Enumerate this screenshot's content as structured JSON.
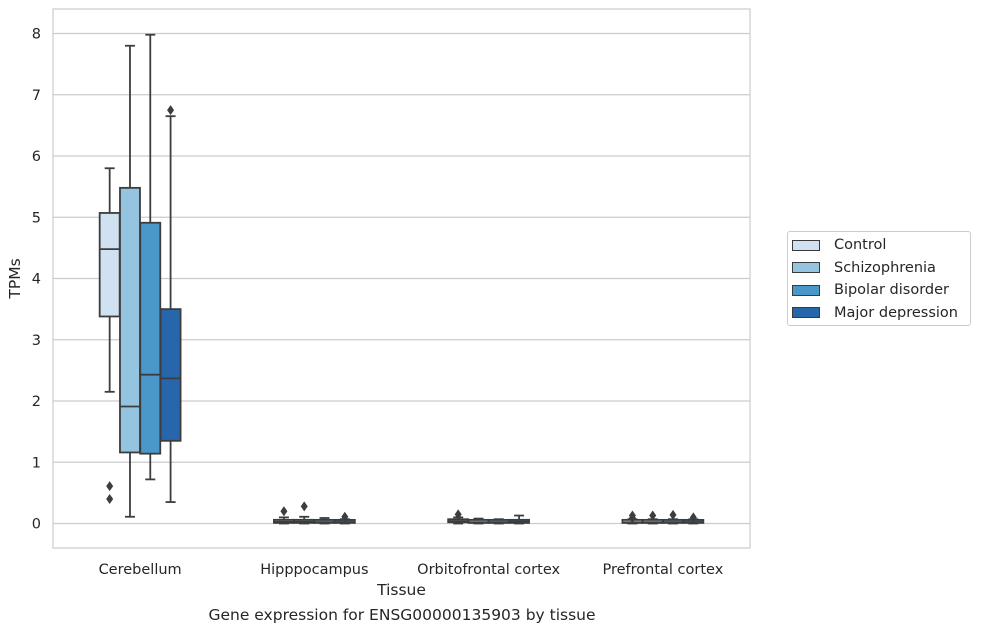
{
  "chart_data": {
    "type": "box",
    "title": "",
    "caption": "Gene expression for ENSG00000135903 by tissue",
    "xlabel": "Tissue",
    "ylabel": "TPMs",
    "ylim": [
      -0.4,
      8.4
    ],
    "yticks": [
      0,
      1,
      2,
      3,
      4,
      5,
      6,
      7,
      8
    ],
    "grid": true,
    "legend_placement": "right",
    "categories": [
      "Cerebellum",
      "Hipppocampus",
      "Orbitofrontal cortex",
      "Prefrontal cortex"
    ],
    "series": [
      {
        "name": "Control",
        "color": "#d0e1f1",
        "boxes": [
          {
            "whislo": 2.15,
            "q1": 3.38,
            "med": 4.48,
            "q3": 5.07,
            "whishi": 5.8,
            "fliers": [
              0.4,
              0.61
            ]
          },
          {
            "whislo": 0.0,
            "q1": 0.01,
            "med": 0.03,
            "q3": 0.06,
            "whishi": 0.1,
            "fliers": [
              0.2
            ]
          },
          {
            "whislo": 0.0,
            "q1": 0.02,
            "med": 0.04,
            "q3": 0.07,
            "whishi": 0.1,
            "fliers": [
              0.15
            ]
          },
          {
            "whislo": 0.0,
            "q1": 0.01,
            "med": 0.02,
            "q3": 0.04,
            "whishi": 0.07,
            "fliers": [
              0.09,
              0.13
            ]
          }
        ]
      },
      {
        "name": "Schizophrenia",
        "color": "#94c4df",
        "boxes": [
          {
            "whislo": 0.11,
            "q1": 1.16,
            "med": 1.91,
            "q3": 5.48,
            "whishi": 7.8,
            "fliers": []
          },
          {
            "whislo": 0.0,
            "q1": 0.01,
            "med": 0.03,
            "q3": 0.06,
            "whishi": 0.11,
            "fliers": [
              0.28
            ]
          },
          {
            "whislo": 0.0,
            "q1": 0.01,
            "med": 0.02,
            "q3": 0.04,
            "whishi": 0.08,
            "fliers": []
          },
          {
            "whislo": 0.0,
            "q1": 0.01,
            "med": 0.02,
            "q3": 0.04,
            "whishi": 0.07,
            "fliers": [
              0.13
            ]
          }
        ]
      },
      {
        "name": "Bipolar disorder",
        "color": "#4a98c9",
        "boxes": [
          {
            "whislo": 0.72,
            "q1": 1.14,
            "med": 2.43,
            "q3": 4.91,
            "whishi": 7.98,
            "fliers": []
          },
          {
            "whislo": 0.0,
            "q1": 0.01,
            "med": 0.02,
            "q3": 0.05,
            "whishi": 0.09,
            "fliers": []
          },
          {
            "whislo": 0.0,
            "q1": 0.01,
            "med": 0.02,
            "q3": 0.04,
            "whishi": 0.07,
            "fliers": []
          },
          {
            "whislo": 0.0,
            "q1": 0.01,
            "med": 0.02,
            "q3": 0.04,
            "whishi": 0.07,
            "fliers": [
              0.14
            ]
          }
        ]
      },
      {
        "name": "Major depression",
        "color": "#2766ab",
        "boxes": [
          {
            "whislo": 0.35,
            "q1": 1.35,
            "med": 2.37,
            "q3": 3.5,
            "whishi": 6.65,
            "fliers": [
              6.75
            ]
          },
          {
            "whislo": 0.0,
            "q1": 0.01,
            "med": 0.02,
            "q3": 0.04,
            "whishi": 0.07,
            "fliers": [
              0.11
            ]
          },
          {
            "whislo": 0.0,
            "q1": 0.01,
            "med": 0.03,
            "q3": 0.06,
            "whishi": 0.13,
            "fliers": []
          },
          {
            "whislo": 0.0,
            "q1": 0.01,
            "med": 0.02,
            "q3": 0.04,
            "whishi": 0.07,
            "fliers": [
              0.1
            ]
          }
        ]
      }
    ]
  }
}
